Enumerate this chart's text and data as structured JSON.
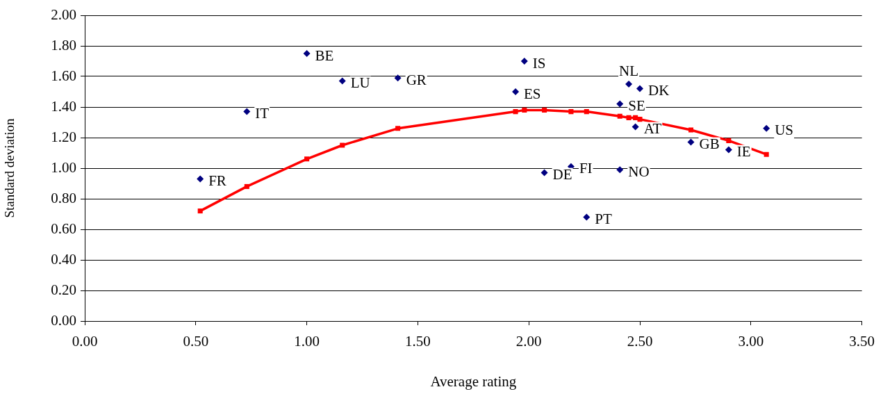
{
  "chart_data": {
    "type": "scatter",
    "xlabel": "Average rating",
    "ylabel": "Standard deviation",
    "xlim": [
      0,
      3.5
    ],
    "xticks": [
      {
        "value": 0,
        "label": "0.00"
      },
      {
        "value": 0.5,
        "label": "0.50"
      },
      {
        "value": 1,
        "label": "1.00"
      },
      {
        "value": 1.5,
        "label": "1.50"
      },
      {
        "value": 2,
        "label": "2.00"
      },
      {
        "value": 2.5,
        "label": "2.50"
      },
      {
        "value": 3,
        "label": "3.00"
      },
      {
        "value": 3.5,
        "label": "3.50"
      }
    ],
    "ylim": [
      0,
      2
    ],
    "yticks": [
      {
        "value": 0,
        "label": "0.00"
      },
      {
        "value": 0.2,
        "label": "0.20"
      },
      {
        "value": 0.4,
        "label": "0.40"
      },
      {
        "value": 0.6,
        "label": "0.60"
      },
      {
        "value": 0.8,
        "label": "0.80"
      },
      {
        "value": 1,
        "label": "1.00"
      },
      {
        "value": 1.2,
        "label": "1.20"
      },
      {
        "value": 1.4,
        "label": "1.40"
      },
      {
        "value": 1.6,
        "label": "1.60"
      },
      {
        "value": 1.8,
        "label": "1.80"
      },
      {
        "value": 2,
        "label": "2.00"
      }
    ],
    "grid": "y",
    "legend": false,
    "series": [
      {
        "type": "scatter",
        "marker": "diamond",
        "color": "#000080",
        "x": [
          0.52,
          0.73,
          1.0,
          1.16,
          1.41,
          1.98,
          1.94,
          2.45,
          2.5,
          2.41,
          2.48,
          3.07,
          2.73,
          2.9,
          2.07,
          2.19,
          2.41,
          2.26
        ],
        "values": [
          0.93,
          1.37,
          1.75,
          1.57,
          1.59,
          1.7,
          1.5,
          1.55,
          1.52,
          1.42,
          1.27,
          1.26,
          1.17,
          1.12,
          0.97,
          1.01,
          0.99,
          0.68
        ]
      },
      {
        "type": "line",
        "marker": "square",
        "line_style": "solid",
        "color": "#ff0000",
        "x": [
          0.52,
          0.73,
          1.0,
          1.16,
          1.41,
          1.94,
          1.98,
          2.07,
          2.19,
          2.26,
          2.41,
          2.45,
          2.48,
          2.5,
          2.73,
          2.9,
          3.07
        ],
        "values": [
          0.72,
          0.88,
          1.06,
          1.15,
          1.26,
          1.37,
          1.38,
          1.38,
          1.37,
          1.37,
          1.34,
          1.33,
          1.33,
          1.32,
          1.25,
          1.18,
          1.09
        ]
      }
    ],
    "annotations": [
      {
        "text": "FR",
        "x": 0.52,
        "y": 0.93
      },
      {
        "text": "IT",
        "x": 0.73,
        "y": 1.37
      },
      {
        "text": "BE",
        "x": 1.0,
        "y": 1.75
      },
      {
        "text": "LU",
        "x": 1.16,
        "y": 1.57
      },
      {
        "text": "GR",
        "x": 1.41,
        "y": 1.59
      },
      {
        "text": "IS",
        "x": 1.98,
        "y": 1.7
      },
      {
        "text": "ES",
        "x": 1.94,
        "y": 1.5
      },
      {
        "text": "NL",
        "x": 2.45,
        "y": 1.55
      },
      {
        "text": "DK",
        "x": 2.5,
        "y": 1.52
      },
      {
        "text": "SE",
        "x": 2.41,
        "y": 1.42
      },
      {
        "text": "AT",
        "x": 2.48,
        "y": 1.27
      },
      {
        "text": "US",
        "x": 3.07,
        "y": 1.26
      },
      {
        "text": "GB",
        "x": 2.73,
        "y": 1.17
      },
      {
        "text": "IE",
        "x": 2.9,
        "y": 1.12
      },
      {
        "text": "DE",
        "x": 2.07,
        "y": 0.97
      },
      {
        "text": "FI",
        "x": 2.19,
        "y": 1.01
      },
      {
        "text": "NO",
        "x": 2.41,
        "y": 0.99
      },
      {
        "text": "PT",
        "x": 2.26,
        "y": 0.68
      }
    ]
  }
}
